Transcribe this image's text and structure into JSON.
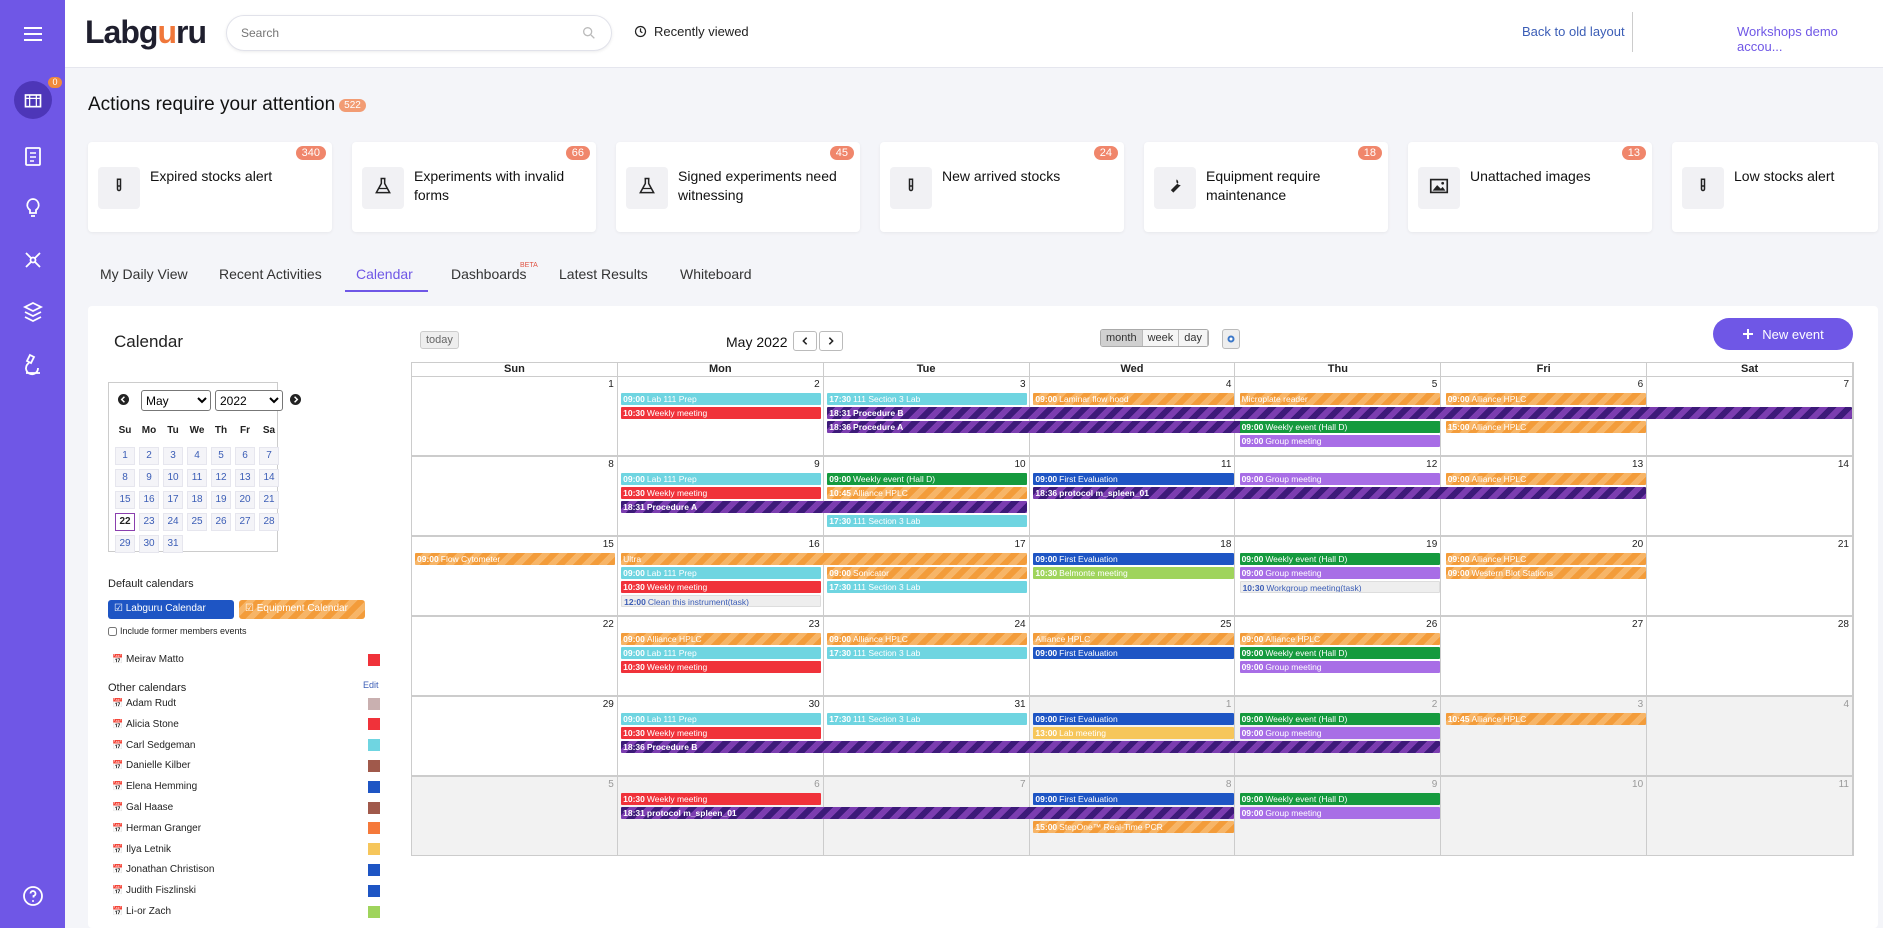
{
  "topbar": {
    "logo": "Labguru",
    "search_placeholder": "Search",
    "recently_viewed": "Recently viewed",
    "back_to_old": "Back to old layout",
    "account": "Workshops demo accou..."
  },
  "sidebar": {
    "badge": "0"
  },
  "attention": {
    "title": "Actions require your attention",
    "count": "522",
    "cards": [
      {
        "label": "Expired stocks alert",
        "count": "340",
        "icon": "test-tube-icon"
      },
      {
        "label": "Experiments with invalid forms",
        "count": "66",
        "icon": "flask-icon"
      },
      {
        "label": "Signed experiments need witnessing",
        "count": "45",
        "icon": "flask-icon"
      },
      {
        "label": "New arrived stocks",
        "count": "24",
        "icon": "test-tube-icon"
      },
      {
        "label": "Equipment require maintenance",
        "count": "18",
        "icon": "wrench-icon"
      },
      {
        "label": "Unattached images",
        "count": "13",
        "icon": "image-icon"
      },
      {
        "label": "Low stocks alert",
        "count": "",
        "icon": "test-tube-icon"
      }
    ]
  },
  "tabs": [
    {
      "label": "My Daily View"
    },
    {
      "label": "Recent Activities"
    },
    {
      "label": "Calendar"
    },
    {
      "label": "Dashboards"
    },
    {
      "label": "Latest Results"
    },
    {
      "label": "Whiteboard"
    }
  ],
  "beta": "BETA",
  "calendar": {
    "title": "Calendar",
    "today": "today",
    "month_title": "May 2022",
    "views": {
      "month": "month",
      "week": "week",
      "day": "day"
    },
    "new_event": "New event",
    "dow": [
      "Sun",
      "Mon",
      "Tue",
      "Wed",
      "Thu",
      "Fri",
      "Sat"
    ],
    "mini": {
      "month": "May",
      "year": "2022",
      "dow": [
        "Su",
        "Mo",
        "Tu",
        "We",
        "Th",
        "Fr",
        "Sa"
      ]
    },
    "default_calendars_label": "Default calendars",
    "labguru_calendar": "Labguru Calendar",
    "equipment_calendar": "Equipment Calendar",
    "include_former": "Include former members events",
    "owner": {
      "name": "Meirav Matto",
      "color": "#f0323a"
    },
    "other_calendars_label": "Other calendars",
    "edit": "Edit",
    "others": [
      {
        "name": "Adam Rudt",
        "color": "#c9b0b0"
      },
      {
        "name": "Alicia Stone",
        "color": "#f0323a"
      },
      {
        "name": "Carl Sedgeman",
        "color": "#6fd5e1"
      },
      {
        "name": "Danielle Kilber",
        "color": "#a0594b"
      },
      {
        "name": "Elena Hemming",
        "color": "#1e55c4"
      },
      {
        "name": "Gal Haase",
        "color": "#a0594b"
      },
      {
        "name": "Herman Granger",
        "color": "#f5793a"
      },
      {
        "name": "Ilya Letnik",
        "color": "#f6c65b"
      },
      {
        "name": "Jonathan Christison",
        "color": "#1e55c4"
      },
      {
        "name": "Judith Fiszlinski",
        "color": "#1e55c4"
      },
      {
        "name": "Li-or Zach",
        "color": "#9fd45c"
      }
    ]
  },
  "weeks": [
    {
      "days": [
        {
          "n": "1"
        },
        {
          "n": "2"
        },
        {
          "n": "3"
        },
        {
          "n": "4"
        },
        {
          "n": "5"
        },
        {
          "n": "6"
        },
        {
          "n": "7"
        }
      ],
      "events": [
        {
          "d": 1,
          "span": 1,
          "row": 0,
          "t": "09:00",
          "l": "Lab 111 Prep",
          "c": "cyan"
        },
        {
          "d": 1,
          "span": 1,
          "row": 1,
          "t": "10:30",
          "l": "Weekly meeting",
          "c": "red"
        },
        {
          "d": 2,
          "span": 1,
          "row": 0,
          "t": "17:30",
          "l": "111 Section 3 Lab",
          "c": "cyan"
        },
        {
          "d": 2,
          "span": 5,
          "row": 1,
          "t": "18:31",
          "l": "Procedure B",
          "c": "dark"
        },
        {
          "d": 2,
          "span": 3,
          "row": 2,
          "t": "18:36",
          "l": "Procedure A",
          "c": "dark"
        },
        {
          "d": 3,
          "span": 1,
          "row": 0,
          "t": "09:00",
          "l": "Laminar flow hood",
          "c": "orange"
        },
        {
          "d": 4,
          "span": 1,
          "row": 0,
          "t": "",
          "l": "Microplate reader",
          "c": "orange"
        },
        {
          "d": 4,
          "span": 1,
          "row": 2,
          "t": "09:00",
          "l": "Weekly event (Hall D)",
          "c": "green"
        },
        {
          "d": 4,
          "span": 1,
          "row": 3,
          "t": "09:00",
          "l": "Group meeting",
          "c": "purple"
        },
        {
          "d": 5,
          "span": 1,
          "row": 0,
          "t": "09:00",
          "l": "Alliance HPLC",
          "c": "orange"
        },
        {
          "d": 5,
          "span": 1,
          "row": 2,
          "t": "15:00",
          "l": "Alliance HPLC",
          "c": "orange"
        }
      ]
    },
    {
      "days": [
        {
          "n": "8"
        },
        {
          "n": "9"
        },
        {
          "n": "10"
        },
        {
          "n": "11"
        },
        {
          "n": "12"
        },
        {
          "n": "13"
        },
        {
          "n": "14"
        }
      ],
      "events": [
        {
          "d": 1,
          "span": 1,
          "row": 0,
          "t": "09:00",
          "l": "Lab 111 Prep",
          "c": "cyan"
        },
        {
          "d": 1,
          "span": 1,
          "row": 1,
          "t": "10:30",
          "l": "Weekly meeting",
          "c": "red"
        },
        {
          "d": 1,
          "span": 2,
          "row": 2,
          "t": "18:31",
          "l": "Procedure A",
          "c": "dark"
        },
        {
          "d": 2,
          "span": 1,
          "row": 0,
          "t": "09:00",
          "l": "Weekly event (Hall D)",
          "c": "green"
        },
        {
          "d": 2,
          "span": 1,
          "row": 1,
          "t": "10:45",
          "l": "Alliance HPLC",
          "c": "orange"
        },
        {
          "d": 2,
          "span": 1,
          "row": 3,
          "t": "17:30",
          "l": "111 Section 3 Lab",
          "c": "cyan"
        },
        {
          "d": 3,
          "span": 1,
          "row": 0,
          "t": "09:00",
          "l": "First Evaluation",
          "c": "blue"
        },
        {
          "d": 3,
          "span": 3,
          "row": 1,
          "t": "18:36",
          "l": "protocol m_spleen_01",
          "c": "dark"
        },
        {
          "d": 4,
          "span": 1,
          "row": 0,
          "t": "09:00",
          "l": "Group meeting",
          "c": "purple"
        },
        {
          "d": 5,
          "span": 1,
          "row": 0,
          "t": "09:00",
          "l": "Alliance HPLC",
          "c": "orange"
        }
      ]
    },
    {
      "days": [
        {
          "n": "15"
        },
        {
          "n": "16"
        },
        {
          "n": "17"
        },
        {
          "n": "18"
        },
        {
          "n": "19"
        },
        {
          "n": "20"
        },
        {
          "n": "21"
        }
      ],
      "events": [
        {
          "d": 0,
          "span": 1,
          "row": 0,
          "t": "09:00",
          "l": "Flow Cytometer",
          "c": "orange"
        },
        {
          "d": 1,
          "span": 2,
          "row": 0,
          "t": "",
          "l": "Ultra",
          "c": "orange"
        },
        {
          "d": 1,
          "span": 1,
          "row": 1,
          "t": "09:00",
          "l": "Lab 111 Prep",
          "c": "cyan"
        },
        {
          "d": 1,
          "span": 1,
          "row": 2,
          "t": "10:30",
          "l": "Weekly meeting",
          "c": "red"
        },
        {
          "d": 1,
          "span": 1,
          "row": 3,
          "t": "12:00",
          "l": "Clean this instrument(task)",
          "c": "task"
        },
        {
          "d": 2,
          "span": 1,
          "row": 1,
          "t": "09:00",
          "l": "Sonicator",
          "c": "orange"
        },
        {
          "d": 2,
          "span": 1,
          "row": 2,
          "t": "17:30",
          "l": "111 Section 3 Lab",
          "c": "cyan"
        },
        {
          "d": 3,
          "span": 1,
          "row": 0,
          "t": "09:00",
          "l": "First Evaluation",
          "c": "blue"
        },
        {
          "d": 3,
          "span": 1,
          "row": 1,
          "t": "10:30",
          "l": "Belmonte meeting",
          "c": "lightgreen"
        },
        {
          "d": 4,
          "span": 1,
          "row": 0,
          "t": "09:00",
          "l": "Weekly event (Hall D)",
          "c": "green"
        },
        {
          "d": 4,
          "span": 1,
          "row": 1,
          "t": "09:00",
          "l": "Group meeting",
          "c": "purple"
        },
        {
          "d": 4,
          "span": 1,
          "row": 2,
          "t": "10:30",
          "l": "Workgroup meeting(task)",
          "c": "task"
        },
        {
          "d": 5,
          "span": 1,
          "row": 0,
          "t": "09:00",
          "l": "Alliance HPLC",
          "c": "orange"
        },
        {
          "d": 5,
          "span": 1,
          "row": 1,
          "t": "09:00",
          "l": "Western Blot Stations",
          "c": "orange"
        }
      ]
    },
    {
      "days": [
        {
          "n": "22"
        },
        {
          "n": "23"
        },
        {
          "n": "24"
        },
        {
          "n": "25"
        },
        {
          "n": "26"
        },
        {
          "n": "27"
        },
        {
          "n": "28"
        }
      ],
      "events": [
        {
          "d": 1,
          "span": 1,
          "row": 0,
          "t": "09:00",
          "l": "Alliance HPLC",
          "c": "orange"
        },
        {
          "d": 1,
          "span": 1,
          "row": 1,
          "t": "09:00",
          "l": "Lab 111 Prep",
          "c": "cyan"
        },
        {
          "d": 1,
          "span": 1,
          "row": 2,
          "t": "10:30",
          "l": "Weekly meeting",
          "c": "red"
        },
        {
          "d": 2,
          "span": 1,
          "row": 0,
          "t": "09:00",
          "l": "Alliance HPLC",
          "c": "orange"
        },
        {
          "d": 2,
          "span": 1,
          "row": 1,
          "t": "17:30",
          "l": "111 Section 3 Lab",
          "c": "cyan"
        },
        {
          "d": 3,
          "span": 1,
          "row": 0,
          "t": "",
          "l": "Alliance HPLC",
          "c": "orange"
        },
        {
          "d": 3,
          "span": 1,
          "row": 1,
          "t": "09:00",
          "l": "First Evaluation",
          "c": "blue"
        },
        {
          "d": 4,
          "span": 1,
          "row": 0,
          "t": "09:00",
          "l": "Alliance HPLC",
          "c": "orange"
        },
        {
          "d": 4,
          "span": 1,
          "row": 1,
          "t": "09:00",
          "l": "Weekly event (Hall D)",
          "c": "green"
        },
        {
          "d": 4,
          "span": 1,
          "row": 2,
          "t": "09:00",
          "l": "Group meeting",
          "c": "purple"
        }
      ]
    },
    {
      "days": [
        {
          "n": "29"
        },
        {
          "n": "30"
        },
        {
          "n": "31"
        },
        {
          "n": "1",
          "o": true
        },
        {
          "n": "2",
          "o": true
        },
        {
          "n": "3",
          "o": true
        },
        {
          "n": "4",
          "o": true
        }
      ],
      "events": [
        {
          "d": 1,
          "span": 1,
          "row": 0,
          "t": "09:00",
          "l": "Lab 111 Prep",
          "c": "cyan"
        },
        {
          "d": 1,
          "span": 1,
          "row": 1,
          "t": "10:30",
          "l": "Weekly meeting",
          "c": "red"
        },
        {
          "d": 1,
          "span": 4,
          "row": 2,
          "t": "18:36",
          "l": "Procedure B",
          "c": "dark"
        },
        {
          "d": 2,
          "span": 1,
          "row": 0,
          "t": "17:30",
          "l": "111 Section 3 Lab",
          "c": "cyan"
        },
        {
          "d": 3,
          "span": 1,
          "row": 0,
          "t": "09:00",
          "l": "First Evaluation",
          "c": "blue"
        },
        {
          "d": 3,
          "span": 1,
          "row": 1,
          "t": "13:00",
          "l": "Lab meeting",
          "c": "yellow"
        },
        {
          "d": 4,
          "span": 1,
          "row": 0,
          "t": "09:00",
          "l": "Weekly event (Hall D)",
          "c": "green"
        },
        {
          "d": 4,
          "span": 1,
          "row": 1,
          "t": "09:00",
          "l": "Group meeting",
          "c": "purple"
        },
        {
          "d": 5,
          "span": 1,
          "row": 0,
          "t": "10:45",
          "l": "Alliance HPLC",
          "c": "orange"
        }
      ]
    },
    {
      "days": [
        {
          "n": "5",
          "o": true
        },
        {
          "n": "6",
          "o": true
        },
        {
          "n": "7",
          "o": true
        },
        {
          "n": "8",
          "o": true
        },
        {
          "n": "9",
          "o": true
        },
        {
          "n": "10",
          "o": true
        },
        {
          "n": "11",
          "o": true
        }
      ],
      "events": [
        {
          "d": 1,
          "span": 1,
          "row": 0,
          "t": "10:30",
          "l": "Weekly meeting",
          "c": "red"
        },
        {
          "d": 1,
          "span": 3,
          "row": 1,
          "t": "18:31",
          "l": "protocol m_spleen_01",
          "c": "dark"
        },
        {
          "d": 3,
          "span": 1,
          "row": 0,
          "t": "09:00",
          "l": "First Evaluation",
          "c": "blue"
        },
        {
          "d": 3,
          "span": 1,
          "row": 2,
          "t": "15:00",
          "l": "StepOne™ Real-Time PCR",
          "c": "orange"
        },
        {
          "d": 4,
          "span": 1,
          "row": 0,
          "t": "09:00",
          "l": "Weekly event (Hall D)",
          "c": "green"
        },
        {
          "d": 4,
          "span": 1,
          "row": 1,
          "t": "09:00",
          "l": "Group meeting",
          "c": "purple"
        }
      ]
    }
  ],
  "mini_days": [
    [
      "",
      "",
      "",
      "",
      "",
      "",
      ""
    ],
    [
      "1",
      "2",
      "3",
      "4",
      "5",
      "6",
      "7"
    ],
    [
      "8",
      "9",
      "10",
      "11",
      "12",
      "13",
      "14"
    ],
    [
      "15",
      "16",
      "17",
      "18",
      "19",
      "20",
      "21"
    ],
    [
      "22",
      "23",
      "24",
      "25",
      "26",
      "27",
      "28"
    ],
    [
      "29",
      "30",
      "31",
      "",
      "",
      "",
      ""
    ]
  ],
  "mini_today": "22"
}
